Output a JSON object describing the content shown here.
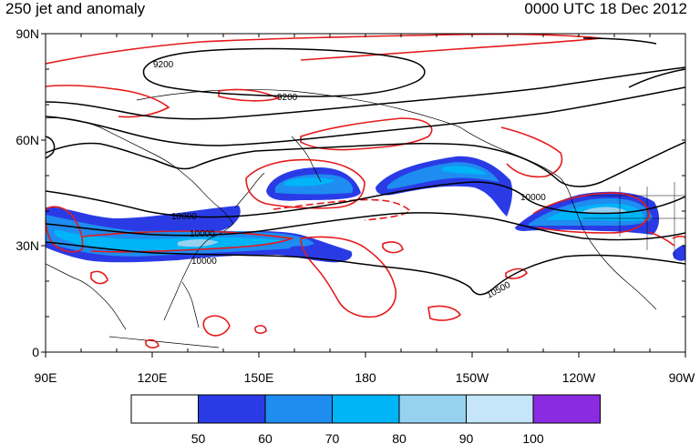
{
  "title_left": "250 jet and anomaly",
  "title_right": "0000 UTC 18 Dec 2012",
  "lat_ticks": [
    "90N",
    "60N",
    "30N",
    "0"
  ],
  "lon_ticks": [
    "90E",
    "120E",
    "150E",
    "180",
    "150W",
    "120W",
    "90W"
  ],
  "contour_labels": [
    "9200",
    "9200",
    "10000",
    "10000",
    "10000",
    "10000",
    "10500"
  ],
  "colorbar": {
    "labels": [
      "50",
      "60",
      "70",
      "80",
      "90",
      "100"
    ],
    "colors": [
      "#ffffff",
      "#2a3be6",
      "#1e8cf0",
      "#00b4f8",
      "#96d2f0",
      "#c4e6f8",
      "#8a2be2"
    ]
  },
  "colors": {
    "height_contour": "#000000",
    "anomaly_contour": "#e41a1c",
    "coastline": "#000000"
  }
}
